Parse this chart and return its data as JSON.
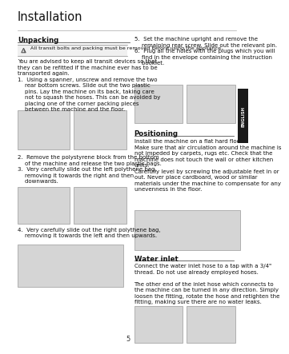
{
  "page_bg": "#ffffff",
  "title": "Installation",
  "section1_title": "Unpacking",
  "warning_text": "All transit bolts and packing must be removed before using the appliance.",
  "body1": "You are advised to keep all transit devices so that\nthey can be refitted if the machine ever has to be\ntransported again.\n1.  Using a spanner, unscrew and remove the two\n    rear bottom screws. Slide out the two plastic\n    pins. Lay the machine on its back, taking care\n    not to squash the hoses. This can be avoided by\n    placing one of the corner packing pieces\n    between the machine and the floor.",
  "body2": "2.  Remove the polystyrene block from the bottom\n    of the machine and release the two plastic bags.\n3.  Very carefully slide out the left polythene bag,\n    removing it towards the right and then\n    downwards.",
  "body3": "4.  Very carefully slide out the right polythene bag,\n    removing it towards the left and then upwards.",
  "right_body1": "5.  Set the machine upright and remove the\n    remaining rear screw. Slide out the relevant pin.\n6.  Plug all the holes with the plugs which you will\n    find in the envelope containing the instruction\n    booklet.",
  "section2_title": "Positioning",
  "section2_text": "Install the machine on a flat hard floor.\nMake sure that air circulation around the machine is\nnot impeded by carpets, rugs etc. Check that the\nmachine does not touch the wall or other kitchen\nunits.\nCarefully level by screwing the adjustable feet in or\nout. Never place cardboard, wood or similar\nmaterials under the machine to compensate for any\nunevenness in the floor.",
  "section3_title": "Water inlet",
  "section3_text": "Connect the water inlet hose to a tap with a 3/4\"\nthread. Do not use already employed hoses.\n\nThe other end of the inlet hose which connects to\nthe machine can be turned in any direction. Simply\nloosen the fitting, rotate the hose and retighten the\nfitting, making sure there are no water leaks.",
  "english_tab_text": "ENGLISH",
  "page_number": "5"
}
